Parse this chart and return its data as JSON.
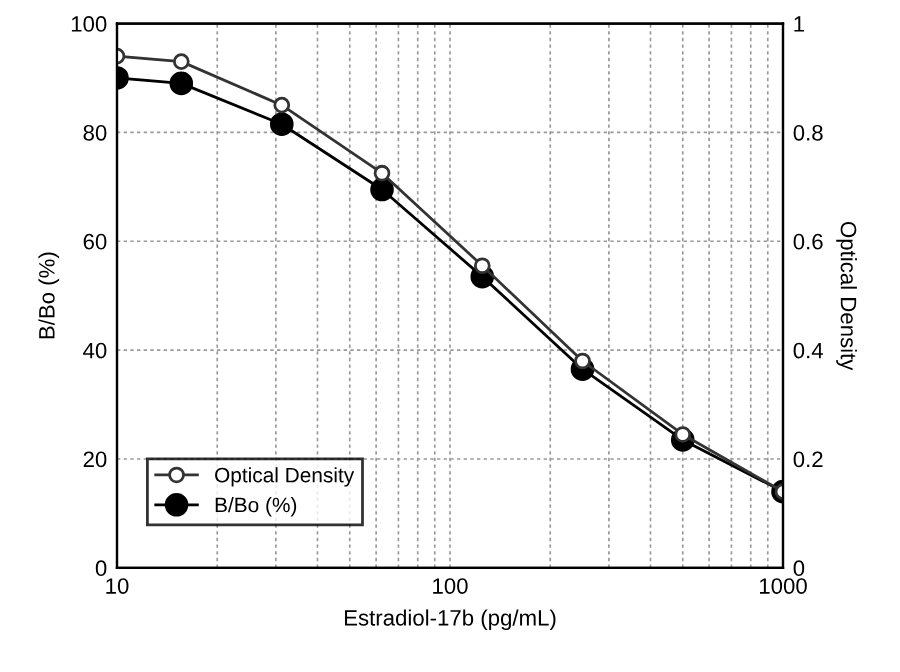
{
  "chart_data": {
    "type": "line",
    "xlabel": "Estradiol-17b (pg/mL)",
    "ylabel": "B/Bo (%)",
    "y2label": "Optical Density",
    "x": [
      10,
      15.6,
      31.25,
      62.5,
      125,
      250,
      500,
      1000
    ],
    "series": [
      {
        "name": "Optical Density",
        "color": "#333333",
        "axis": "y2",
        "marker": "open_circle",
        "values": [
          0.94,
          0.93,
          0.85,
          0.725,
          0.555,
          0.38,
          0.245,
          0.14
        ]
      },
      {
        "name": "B/Bo (%)",
        "color": "#000000",
        "marker": "circle",
        "values": [
          90,
          89,
          81.5,
          69.5,
          53.5,
          36.5,
          23.5,
          14
        ]
      }
    ],
    "log": "x",
    "xlim": [
      10,
      1000
    ],
    "xticks": [
      10,
      100,
      1000
    ],
    "ylim": [
      0,
      100
    ],
    "yticks": [
      0,
      20,
      40,
      60,
      80,
      100
    ],
    "y2lim": [
      0,
      1
    ],
    "y2ticks": [
      0,
      0.2,
      0.4,
      0.6,
      0.8,
      1
    ],
    "grid": true,
    "legend": "lower left",
    "line_style": "solid"
  }
}
